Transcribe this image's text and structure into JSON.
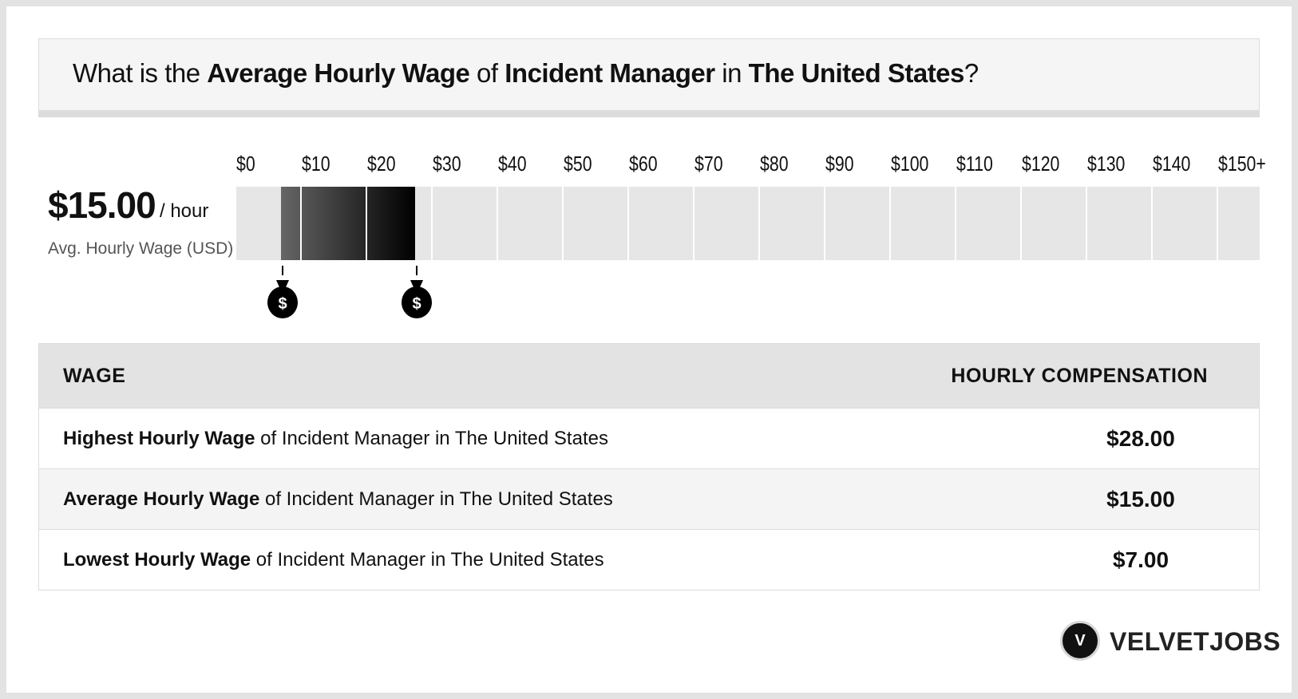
{
  "header": {
    "q_prefix": "What is the ",
    "q_metric": "Average Hourly Wage",
    "q_of": " of ",
    "q_job": "Incident Manager",
    "q_in": " in ",
    "q_location": "The United States",
    "q_suffix": "?"
  },
  "summary": {
    "value": "$15.00",
    "unit": "/ hour",
    "label": "Avg. Hourly Wage (USD)"
  },
  "chart_data": {
    "type": "bar",
    "xlim": [
      0,
      160
    ],
    "tick_labels": [
      "$0",
      "$10",
      "$20",
      "$30",
      "$40",
      "$50",
      "$60",
      "$70",
      "$80",
      "$90",
      "$100",
      "$110",
      "$120",
      "$130",
      "$140",
      "$150+"
    ],
    "tick_values": [
      0,
      10,
      20,
      30,
      40,
      50,
      60,
      70,
      80,
      90,
      100,
      110,
      120,
      130,
      140,
      150
    ],
    "range_low": 7,
    "range_high": 28,
    "average": 15,
    "markers": [
      {
        "name": "lowest",
        "value": 7,
        "icon": "money-bag-icon"
      },
      {
        "name": "highest",
        "value": 28,
        "icon": "money-bag-icon"
      }
    ],
    "colors": {
      "empty": "#e6e6e6",
      "range_dark": "#000000",
      "range_light": "#666666"
    }
  },
  "table": {
    "col_wage": "WAGE",
    "col_comp": "HOURLY COMPENSATION",
    "rows": [
      {
        "bold": "Highest Hourly Wage",
        "rest": " of Incident Manager in The United States",
        "value": "$28.00"
      },
      {
        "bold": "Average Hourly Wage",
        "rest": " of Incident Manager in The United States",
        "value": "$15.00"
      },
      {
        "bold": "Lowest Hourly Wage",
        "rest": " of Incident Manager in The United States",
        "value": "$7.00"
      }
    ]
  },
  "logo": {
    "mark": "V",
    "text": "VELVETJOBS"
  }
}
